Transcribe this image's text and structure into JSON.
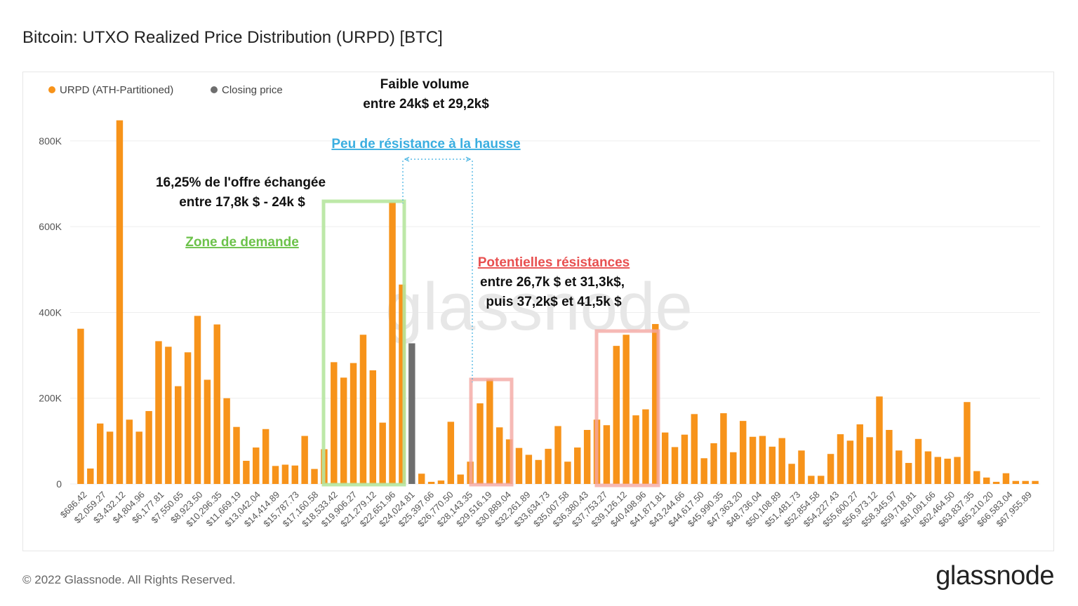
{
  "header": {
    "title": "Bitcoin: UTXO Realized Price Distribution (URPD) [BTC]"
  },
  "footer": {
    "copyright": "© 2022 Glassnode. All Rights Reserved.",
    "brand": "glassnode"
  },
  "watermark": "glassnode",
  "colors": {
    "urpd": "#f7931a",
    "closing": "#6e6e6e",
    "demand": "#b6e59e",
    "resistance": "#f4a7a3",
    "blue_note": "#3aaee0",
    "red_note": "#e85050",
    "green_note": "#6cc24a"
  },
  "annotations": {
    "low_volume_line1": "Faible volume",
    "low_volume_line2": "entre 24k$ et 29,2k$",
    "low_resistance": "Peu de résistance à la hausse",
    "supply_line1": "16,25% de l'offre échangée",
    "supply_line2": "entre 17,8k $ - 24k $",
    "demand_zone": "Zone de demande",
    "resist_title": "Potentielles résistances",
    "resist_line1": "entre 26,7k $ et 31,3k$,",
    "resist_line2": "puis 37,2k$ et 41,5k $"
  },
  "chart_data": {
    "type": "bar",
    "title": "Bitcoin: UTXO Realized Price Distribution (URPD) [BTC]",
    "legend_position": "top-left",
    "grid": true,
    "ylim": [
      0,
      880000
    ],
    "y_ticks": [
      "0",
      "200K",
      "400K",
      "600K",
      "800K"
    ],
    "y_tick_values": [
      0,
      200000,
      400000,
      600000,
      800000
    ],
    "x_tick_labels": [
      "$686.42",
      "$2,059.27",
      "$3,432.12",
      "$4,804.96",
      "$6,177.81",
      "$7,550.65",
      "$8,923.50",
      "$10,296.35",
      "$11,669.19",
      "$13,042.04",
      "$14,414.89",
      "$15,787.73",
      "$17,160.58",
      "$18,533.42",
      "$19,906.27",
      "$21,279.12",
      "$22,651.96",
      "$24,024.81",
      "$25,397.66",
      "$26,770.50",
      "$28,143.35",
      "$29,516.19",
      "$30,889.04",
      "$32,261.89",
      "$33,634.73",
      "$35,007.58",
      "$36,380.43",
      "$37,753.27",
      "$39,126.12",
      "$40,498.96",
      "$41,871.81",
      "$43,244.66",
      "$44,617.50",
      "$45,990.35",
      "$47,363.20",
      "$48,736.04",
      "$50,108.89",
      "$51,481.73",
      "$52,854.58",
      "$54,227.43",
      "$55,600.27",
      "$56,973.12",
      "$58,345.97",
      "$59,718.81",
      "$61,091.66",
      "$62,464.50",
      "$63,837.35",
      "$65,210.20",
      "$66,583.04",
      "$67,955.89"
    ],
    "series": [
      {
        "name": "URPD (ATH-Partitioned)",
        "values": [
          362000,
          36000,
          141000,
          122000,
          848000,
          150000,
          122000,
          170000,
          333000,
          320000,
          228000,
          307000,
          392000,
          243000,
          372000,
          200000,
          133000,
          54000,
          85000,
          128000,
          42000,
          45000,
          43000,
          112000,
          35000,
          81000,
          284000,
          248000,
          282000,
          348000,
          265000,
          143000,
          657000,
          465000,
          0,
          24000,
          5000,
          8000,
          145000,
          22000,
          52000,
          188000,
          244000,
          132000,
          104000,
          84000,
          68000,
          56000,
          82000,
          135000,
          52000,
          85000,
          126000,
          150000,
          137000,
          322000,
          348000,
          160000,
          174000,
          373000,
          120000,
          86000,
          115000,
          163000,
          60000,
          95000,
          165000,
          74000,
          147000,
          110000,
          112000,
          87000,
          107000,
          47000,
          78000,
          19000,
          19000,
          70000,
          116000,
          101000,
          139000,
          109000,
          204000,
          126000,
          78000,
          49000,
          105000,
          76000,
          63000,
          59000,
          63000,
          191000,
          30000,
          15000,
          5000,
          25000,
          7000,
          7000,
          7000
        ]
      },
      {
        "name": "Closing price",
        "values": [
          0,
          0,
          0,
          0,
          0,
          0,
          0,
          0,
          0,
          0,
          0,
          0,
          0,
          0,
          0,
          0,
          0,
          0,
          0,
          0,
          0,
          0,
          0,
          0,
          0,
          0,
          0,
          0,
          0,
          0,
          0,
          0,
          0,
          0,
          328000,
          0,
          0,
          0,
          0,
          0,
          0,
          0,
          0,
          0,
          0,
          0,
          0,
          0,
          0,
          0,
          0,
          0,
          0,
          0,
          0,
          0,
          0,
          0,
          0,
          0,
          0,
          0,
          0,
          0,
          0,
          0,
          0,
          0,
          0,
          0,
          0,
          0,
          0,
          0,
          0,
          0,
          0,
          0,
          0,
          0,
          0,
          0,
          0,
          0,
          0,
          0,
          0,
          0,
          0,
          0,
          0,
          0,
          0,
          0,
          0,
          0,
          0,
          0,
          0,
          0
        ]
      }
    ]
  }
}
